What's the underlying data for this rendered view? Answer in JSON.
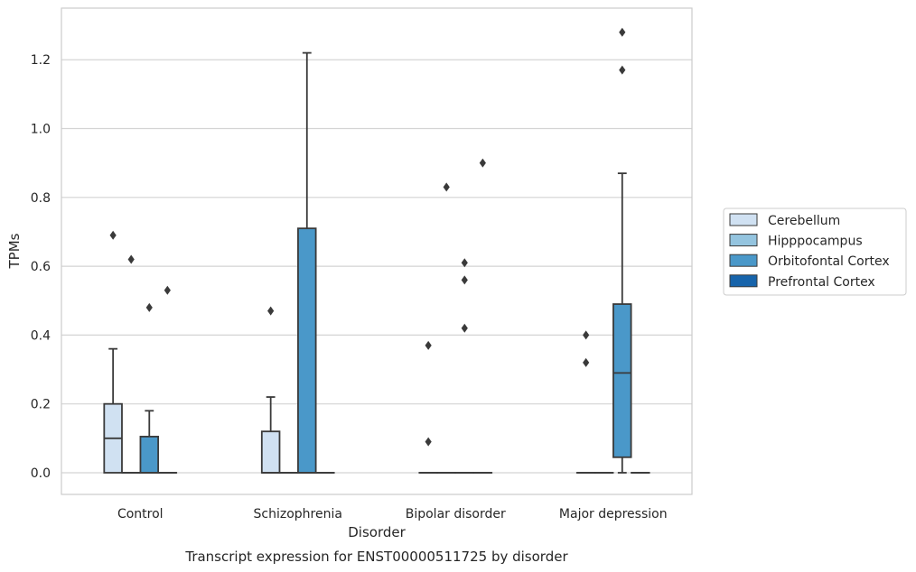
{
  "chart_data": {
    "type": "box",
    "caption": "Transcript expression for ENST00000511725 by disorder",
    "xlabel": "Disorder",
    "ylabel": "TPMs",
    "ylim": [
      -0.063,
      1.35
    ],
    "yticks": [
      0.0,
      0.2,
      0.4,
      0.6,
      0.8,
      1.0,
      1.2
    ],
    "ytick_labels": [
      "0.0",
      "0.2",
      "0.4",
      "0.6",
      "0.8",
      "1.0",
      "1.2"
    ],
    "grid": "horizontal",
    "legend_position": "right",
    "categories": [
      "Control",
      "Schizophrenia",
      "Bipolar disorder",
      "Major depression"
    ],
    "series": [
      {
        "name": "Cerebellum",
        "color": "#d0e1f2",
        "boxes": [
          {
            "q1": 0.0,
            "median": 0.1,
            "q3": 0.2,
            "whisker_low": 0.0,
            "whisker_high": 0.36,
            "outliers": [
              0.69
            ]
          },
          {
            "q1": 0.0,
            "median": 0.0,
            "q3": 0.12,
            "whisker_low": 0.0,
            "whisker_high": 0.22,
            "outliers": [
              0.47
            ]
          },
          {
            "q1": 0.0,
            "median": 0.0,
            "q3": 0.0,
            "whisker_low": 0.0,
            "whisker_high": 0.0,
            "outliers": [
              0.37,
              0.09
            ]
          },
          {
            "q1": 0.0,
            "median": 0.0,
            "q3": 0.0,
            "whisker_low": 0.0,
            "whisker_high": 0.0,
            "outliers": [
              0.4,
              0.32
            ]
          }
        ]
      },
      {
        "name": "Hipppocampus",
        "color": "#94c4df",
        "boxes": [
          {
            "q1": 0.0,
            "median": 0.0,
            "q3": 0.0,
            "whisker_low": 0.0,
            "whisker_high": 0.0,
            "outliers": [
              0.62
            ]
          },
          {
            "q1": 0.0,
            "median": 0.0,
            "q3": 0.0,
            "whisker_low": 0.0,
            "whisker_high": 0.0,
            "outliers": []
          },
          {
            "q1": 0.0,
            "median": 0.0,
            "q3": 0.0,
            "whisker_low": 0.0,
            "whisker_high": 0.0,
            "outliers": [
              0.83
            ]
          },
          {
            "q1": 0.0,
            "median": 0.0,
            "q3": 0.0,
            "whisker_low": 0.0,
            "whisker_high": 0.0,
            "outliers": []
          }
        ]
      },
      {
        "name": "Orbitofontal Cortex",
        "color": "#4a98c9",
        "boxes": [
          {
            "q1": 0.0,
            "median": 0.0,
            "q3": 0.105,
            "whisker_low": 0.0,
            "whisker_high": 0.18,
            "outliers": [
              0.48
            ]
          },
          {
            "q1": 0.0,
            "median": 0.0,
            "q3": 0.71,
            "whisker_low": 0.0,
            "whisker_high": 1.22,
            "outliers": []
          },
          {
            "q1": 0.0,
            "median": 0.0,
            "q3": 0.0,
            "whisker_low": 0.0,
            "whisker_high": 0.0,
            "outliers": [
              0.61,
              0.56,
              0.42
            ]
          },
          {
            "q1": 0.045,
            "median": 0.29,
            "q3": 0.49,
            "whisker_low": 0.0,
            "whisker_high": 0.87,
            "outliers": [
              1.28,
              1.17
            ]
          }
        ]
      },
      {
        "name": "Prefrontal Cortex",
        "color": "#1764ab",
        "boxes": [
          {
            "q1": 0.0,
            "median": 0.0,
            "q3": 0.0,
            "whisker_low": 0.0,
            "whisker_high": 0.0,
            "outliers": [
              0.53
            ]
          },
          {
            "q1": 0.0,
            "median": 0.0,
            "q3": 0.0,
            "whisker_low": 0.0,
            "whisker_high": 0.0,
            "outliers": []
          },
          {
            "q1": 0.0,
            "median": 0.0,
            "q3": 0.0,
            "whisker_low": 0.0,
            "whisker_high": 0.0,
            "outliers": [
              0.9
            ]
          },
          {
            "q1": 0.0,
            "median": 0.0,
            "q3": 0.0,
            "whisker_low": 0.0,
            "whisker_high": 0.0,
            "outliers": []
          }
        ]
      }
    ]
  }
}
